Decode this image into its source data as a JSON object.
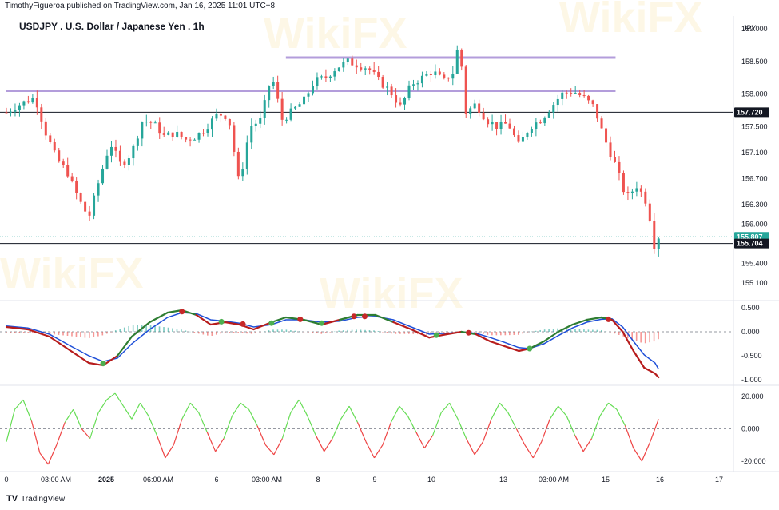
{
  "header": {
    "published": "TimothyFigueroa published on TradingView.com, Jan 16, 2025 11:01 UTC+8"
  },
  "chart_title": "USDJPY . U.S. Dollar / Japanese Yen . 1h",
  "currency": "JPY",
  "watermark": "WikiFX",
  "footer": {
    "logo": "TV",
    "brand": "TradingView"
  },
  "colors": {
    "up": "#26a69a",
    "down": "#ef5350",
    "level_line": "#b39ddb",
    "macd_fast": "#2e7d32",
    "macd_slow": "#1e4fd8",
    "macd_fast_down": "#b71c1c",
    "osc_up": "#66dd55",
    "osc_down": "#ee4444"
  },
  "chart_data": [
    {
      "type": "candlestick",
      "name": "price",
      "y_ticks": [
        "159.000",
        "158.500",
        "158.000",
        "157.500",
        "157.100",
        "156.700",
        "156.300",
        "156.000",
        "155.400",
        "155.100"
      ],
      "ylim": [
        155.0,
        159.1
      ],
      "x_ticks": [
        "0",
        "03:00 AM",
        "2025",
        "06:00 AM",
        "6",
        "03:00 AM",
        "8",
        "9",
        "10",
        "13",
        "03:00 AM",
        "15",
        "16",
        "17"
      ],
      "price_tags": [
        {
          "label": "157.720",
          "value": 157.72,
          "style": "dark"
        },
        {
          "label": "155.807",
          "value": 155.807,
          "style": "green"
        },
        {
          "label": "155.704",
          "value": 155.704,
          "style": "dark"
        }
      ],
      "horizontal_lines": [
        157.72,
        155.704
      ],
      "resistance_levels": [
        {
          "value": 158.56,
          "from": 0.39,
          "to": 0.85
        },
        {
          "value": 158.05,
          "from": 0.0,
          "to": 0.85
        }
      ],
      "close_path": [
        [
          0.0,
          157.72
        ],
        [
          0.02,
          157.85
        ],
        [
          0.04,
          157.95
        ],
        [
          0.055,
          157.4
        ],
        [
          0.07,
          157.0
        ],
        [
          0.085,
          156.8
        ],
        [
          0.1,
          156.4
        ],
        [
          0.115,
          156.1
        ],
        [
          0.13,
          156.7
        ],
        [
          0.145,
          157.25
        ],
        [
          0.16,
          156.9
        ],
        [
          0.175,
          157.1
        ],
        [
          0.19,
          157.6
        ],
        [
          0.205,
          157.55
        ],
        [
          0.22,
          157.35
        ],
        [
          0.235,
          157.4
        ],
        [
          0.25,
          157.3
        ],
        [
          0.265,
          157.35
        ],
        [
          0.28,
          157.5
        ],
        [
          0.295,
          157.7
        ],
        [
          0.31,
          157.65
        ],
        [
          0.325,
          156.6
        ],
        [
          0.34,
          157.5
        ],
        [
          0.355,
          157.6
        ],
        [
          0.37,
          158.3
        ],
        [
          0.385,
          157.6
        ],
        [
          0.4,
          157.75
        ],
        [
          0.415,
          157.9
        ],
        [
          0.43,
          158.2
        ],
        [
          0.445,
          158.25
        ],
        [
          0.46,
          158.4
        ],
        [
          0.475,
          158.5
        ],
        [
          0.49,
          158.45
        ],
        [
          0.505,
          158.4
        ],
        [
          0.52,
          158.2
        ],
        [
          0.535,
          158.05
        ],
        [
          0.55,
          157.8
        ],
        [
          0.565,
          158.15
        ],
        [
          0.58,
          158.25
        ],
        [
          0.595,
          158.35
        ],
        [
          0.61,
          158.2
        ],
        [
          0.625,
          158.35
        ],
        [
          0.632,
          158.9
        ],
        [
          0.64,
          157.7
        ],
        [
          0.655,
          157.85
        ],
        [
          0.67,
          157.6
        ],
        [
          0.685,
          157.5
        ],
        [
          0.7,
          157.55
        ],
        [
          0.715,
          157.2
        ],
        [
          0.73,
          157.5
        ],
        [
          0.745,
          157.6
        ],
        [
          0.76,
          157.8
        ],
        [
          0.775,
          158.0
        ],
        [
          0.79,
          158.05
        ],
        [
          0.805,
          157.95
        ],
        [
          0.82,
          157.8
        ],
        [
          0.835,
          157.3
        ],
        [
          0.85,
          156.9
        ],
        [
          0.865,
          156.4
        ],
        [
          0.88,
          156.6
        ],
        [
          0.895,
          156.3
        ],
        [
          0.905,
          155.6
        ],
        [
          0.91,
          155.81
        ]
      ]
    },
    {
      "type": "line",
      "name": "macd",
      "y_ticks": [
        "0.500",
        "0.000",
        "-0.500",
        "-1.000"
      ],
      "ylim": [
        -1.05,
        0.55
      ],
      "fast": [
        [
          0.0,
          0.1
        ],
        [
          0.03,
          0.05
        ],
        [
          0.06,
          -0.1
        ],
        [
          0.09,
          -0.4
        ],
        [
          0.115,
          -0.65
        ],
        [
          0.135,
          -0.7
        ],
        [
          0.155,
          -0.5
        ],
        [
          0.175,
          -0.1
        ],
        [
          0.2,
          0.2
        ],
        [
          0.225,
          0.4
        ],
        [
          0.245,
          0.45
        ],
        [
          0.265,
          0.35
        ],
        [
          0.285,
          0.15
        ],
        [
          0.305,
          0.2
        ],
        [
          0.325,
          0.15
        ],
        [
          0.345,
          0.05
        ],
        [
          0.37,
          0.2
        ],
        [
          0.39,
          0.3
        ],
        [
          0.415,
          0.25
        ],
        [
          0.44,
          0.15
        ],
        [
          0.465,
          0.25
        ],
        [
          0.49,
          0.35
        ],
        [
          0.515,
          0.35
        ],
        [
          0.54,
          0.2
        ],
        [
          0.565,
          0.05
        ],
        [
          0.59,
          -0.12
        ],
        [
          0.615,
          -0.05
        ],
        [
          0.635,
          0.0
        ],
        [
          0.655,
          -0.05
        ],
        [
          0.675,
          -0.2
        ],
        [
          0.695,
          -0.3
        ],
        [
          0.715,
          -0.4
        ],
        [
          0.73,
          -0.35
        ],
        [
          0.75,
          -0.2
        ],
        [
          0.77,
          0.0
        ],
        [
          0.79,
          0.15
        ],
        [
          0.81,
          0.25
        ],
        [
          0.83,
          0.3
        ],
        [
          0.845,
          0.25
        ],
        [
          0.86,
          0.0
        ],
        [
          0.875,
          -0.4
        ],
        [
          0.89,
          -0.75
        ],
        [
          0.905,
          -0.87
        ],
        [
          0.91,
          -0.95
        ]
      ],
      "slow": [
        [
          0.0,
          0.12
        ],
        [
          0.03,
          0.08
        ],
        [
          0.06,
          -0.05
        ],
        [
          0.09,
          -0.3
        ],
        [
          0.115,
          -0.5
        ],
        [
          0.135,
          -0.62
        ],
        [
          0.155,
          -0.55
        ],
        [
          0.175,
          -0.25
        ],
        [
          0.2,
          0.05
        ],
        [
          0.225,
          0.3
        ],
        [
          0.245,
          0.4
        ],
        [
          0.265,
          0.38
        ],
        [
          0.285,
          0.25
        ],
        [
          0.305,
          0.22
        ],
        [
          0.325,
          0.18
        ],
        [
          0.345,
          0.1
        ],
        [
          0.37,
          0.15
        ],
        [
          0.39,
          0.25
        ],
        [
          0.415,
          0.25
        ],
        [
          0.44,
          0.2
        ],
        [
          0.465,
          0.22
        ],
        [
          0.49,
          0.3
        ],
        [
          0.515,
          0.32
        ],
        [
          0.54,
          0.25
        ],
        [
          0.565,
          0.1
        ],
        [
          0.59,
          -0.05
        ],
        [
          0.615,
          -0.03
        ],
        [
          0.635,
          -0.01
        ],
        [
          0.655,
          -0.03
        ],
        [
          0.675,
          -0.12
        ],
        [
          0.695,
          -0.22
        ],
        [
          0.715,
          -0.33
        ],
        [
          0.73,
          -0.35
        ],
        [
          0.75,
          -0.25
        ],
        [
          0.77,
          -0.08
        ],
        [
          0.79,
          0.08
        ],
        [
          0.81,
          0.2
        ],
        [
          0.83,
          0.26
        ],
        [
          0.845,
          0.27
        ],
        [
          0.86,
          0.1
        ],
        [
          0.875,
          -0.2
        ],
        [
          0.89,
          -0.48
        ],
        [
          0.905,
          -0.65
        ],
        [
          0.91,
          -0.78
        ]
      ],
      "cross_up": [
        [
          0.135,
          -0.66
        ],
        [
          0.3,
          0.21
        ],
        [
          0.37,
          0.18
        ],
        [
          0.44,
          0.18
        ],
        [
          0.6,
          -0.07
        ],
        [
          0.73,
          -0.35
        ]
      ],
      "cross_down": [
        [
          0.245,
          0.42
        ],
        [
          0.33,
          0.16
        ],
        [
          0.41,
          0.26
        ],
        [
          0.485,
          0.32
        ],
        [
          0.5,
          0.32
        ],
        [
          0.645,
          -0.02
        ],
        [
          0.84,
          0.26
        ]
      ]
    },
    {
      "type": "line",
      "name": "oscillator",
      "y_ticks": [
        "20.000",
        "0.000",
        "-20.000"
      ],
      "ylim": [
        -24,
        24
      ],
      "values": [
        -8,
        12,
        18,
        5,
        -15,
        -22,
        -10,
        4,
        12,
        0,
        -6,
        10,
        18,
        22,
        14,
        6,
        16,
        8,
        -4,
        -18,
        -10,
        6,
        16,
        10,
        -2,
        -14,
        -6,
        8,
        16,
        12,
        2,
        -10,
        -16,
        -6,
        10,
        18,
        8,
        -4,
        -14,
        -6,
        6,
        14,
        4,
        -8,
        -18,
        -10,
        4,
        14,
        8,
        -2,
        -12,
        -4,
        10,
        16,
        6,
        -6,
        -16,
        -8,
        6,
        16,
        10,
        0,
        -10,
        -18,
        -8,
        6,
        14,
        8,
        -4,
        -14,
        -6,
        8,
        16,
        12,
        2,
        -12,
        -20,
        -8,
        6
      ]
    }
  ]
}
